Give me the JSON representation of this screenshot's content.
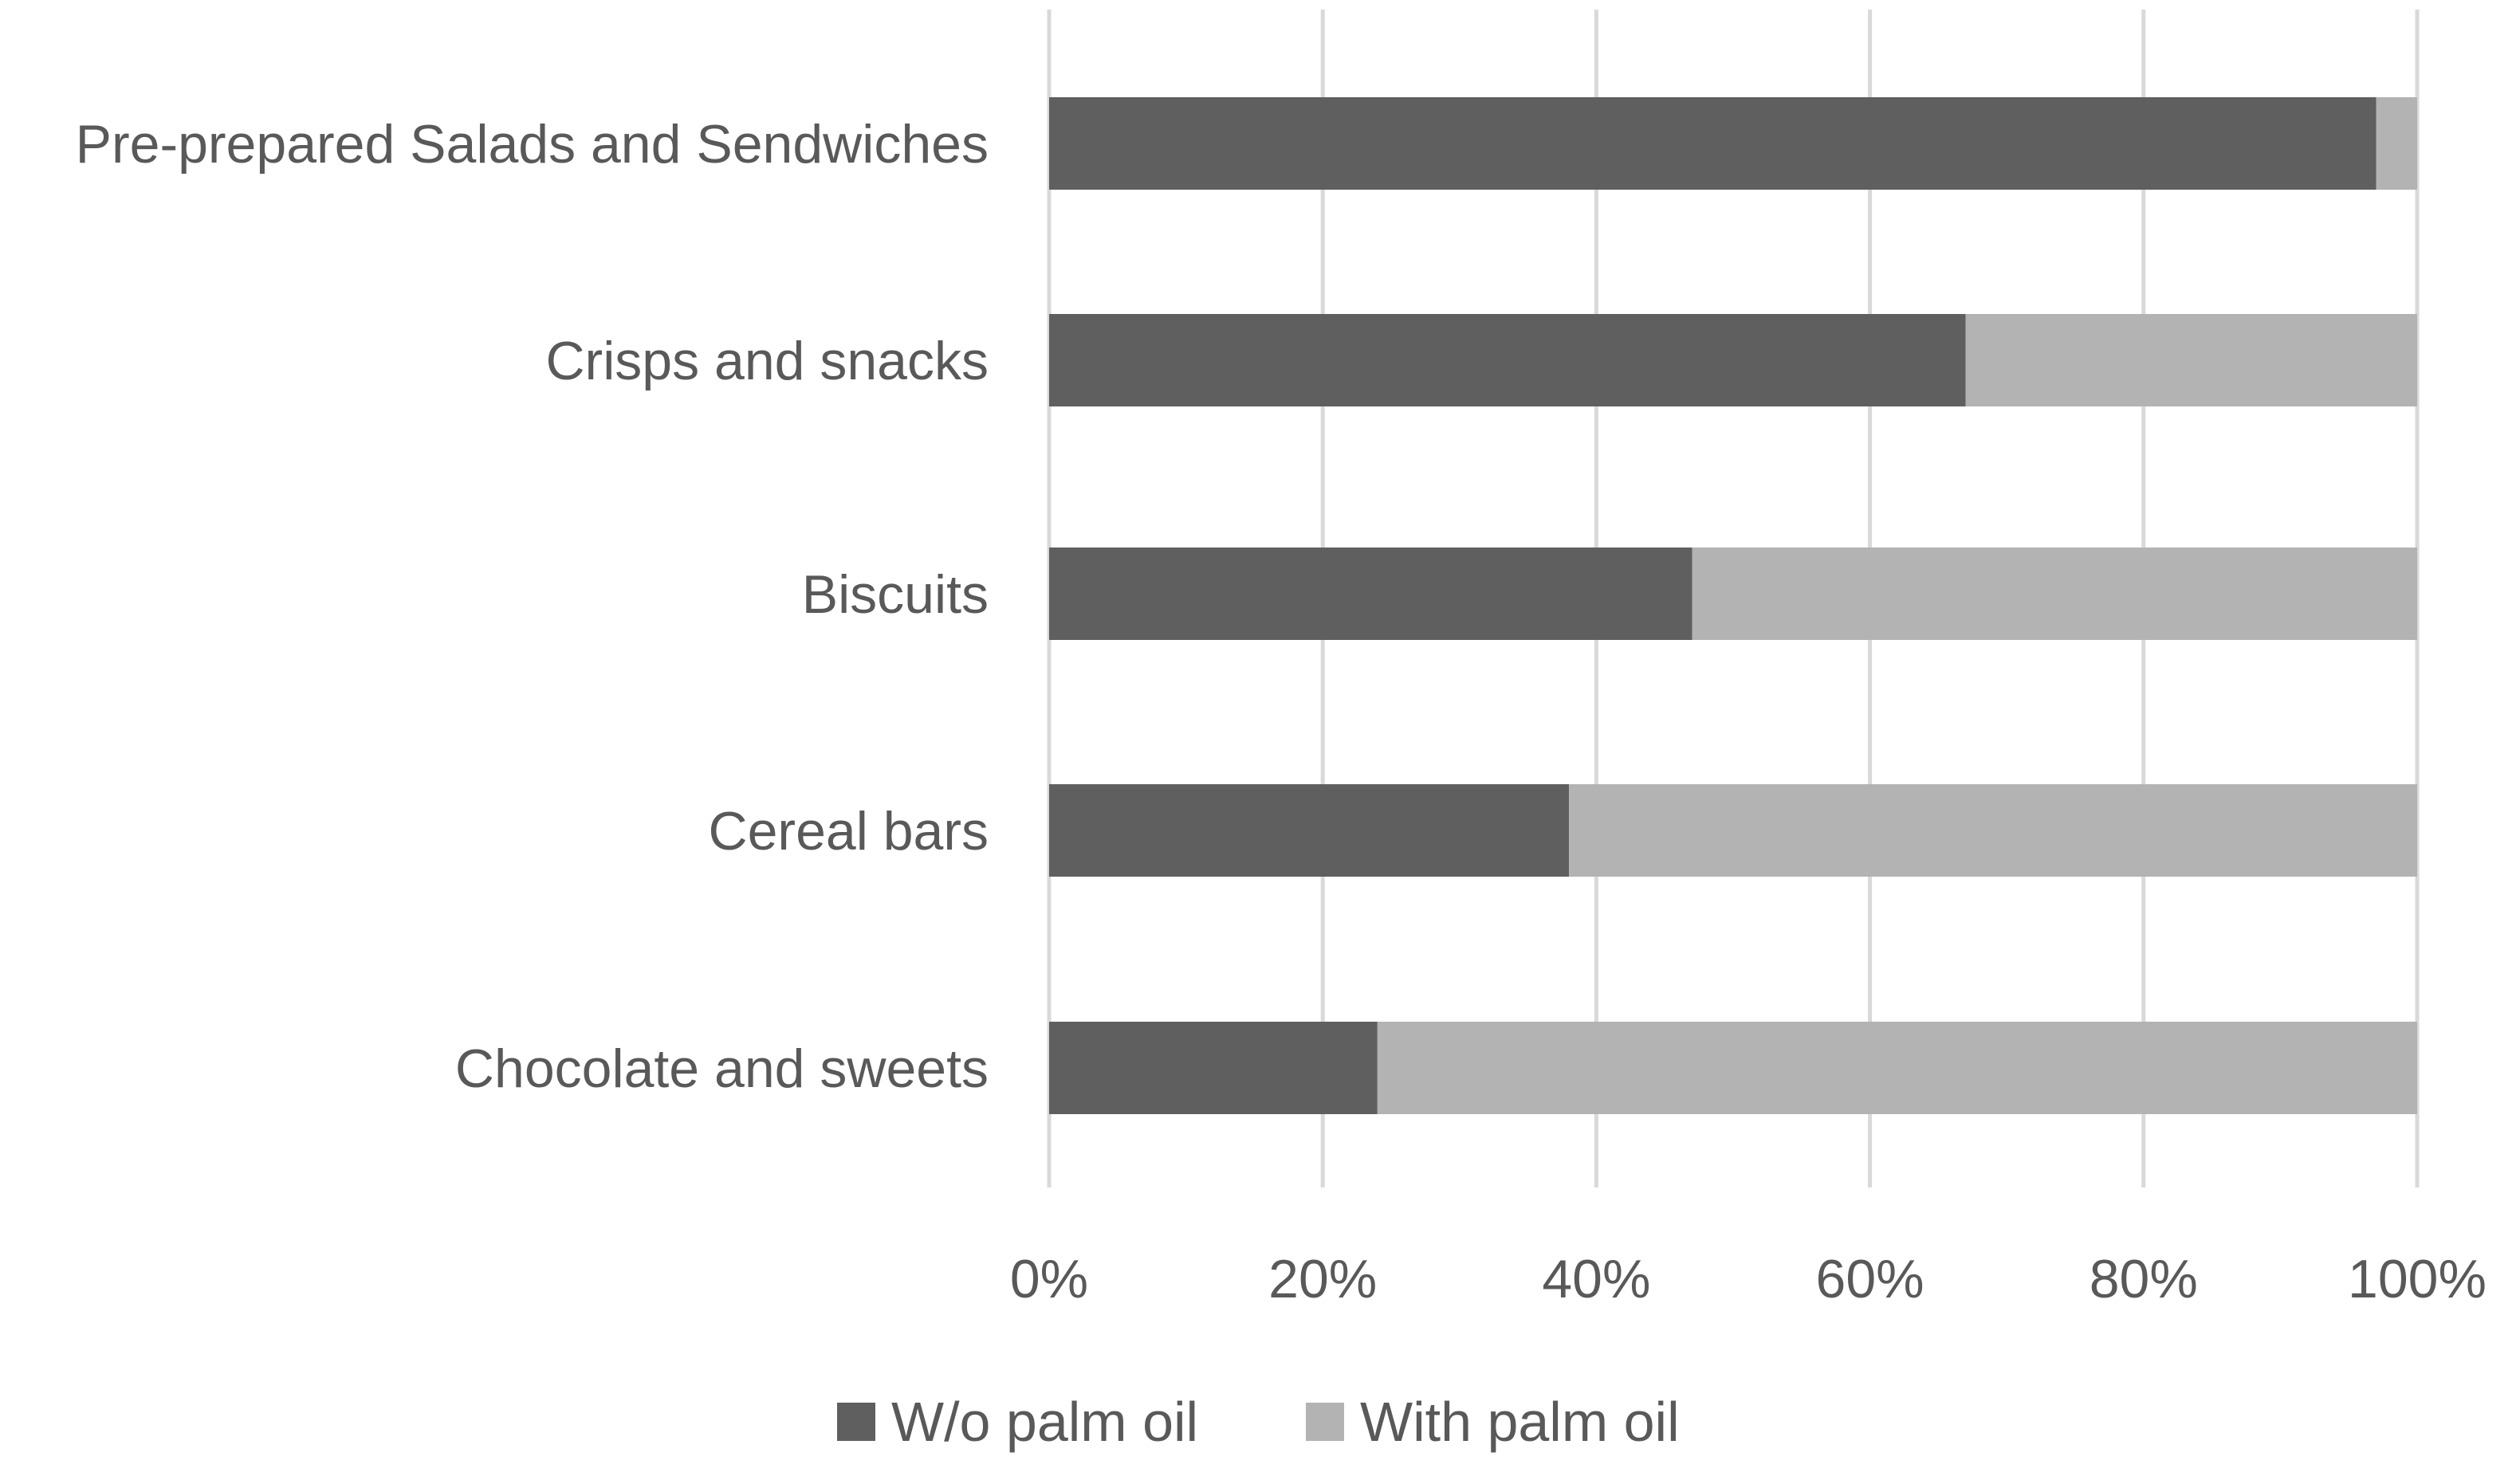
{
  "chart_data": {
    "type": "bar",
    "orientation": "horizontal",
    "stacked": "percent",
    "categories": [
      "Pre-prepared Salads and Sendwiches",
      "Crisps and snacks",
      "Biscuits",
      "Cereal bars",
      "Chocolate and sweets"
    ],
    "series": [
      {
        "name": "W/o palm oil",
        "values": [
          97,
          67,
          47,
          38,
          24
        ],
        "color": "#5f5f5f"
      },
      {
        "name": "With palm oil",
        "values": [
          3,
          33,
          53,
          62,
          76
        ],
        "color": "#b3b3b3"
      }
    ],
    "xlim": [
      0,
      100
    ],
    "x_ticks": [
      "0%",
      "20%",
      "40%",
      "60%",
      "80%",
      "100%"
    ],
    "grid": "vertical",
    "legend_position": "bottom",
    "title": "",
    "xlabel": "",
    "ylabel": ""
  }
}
